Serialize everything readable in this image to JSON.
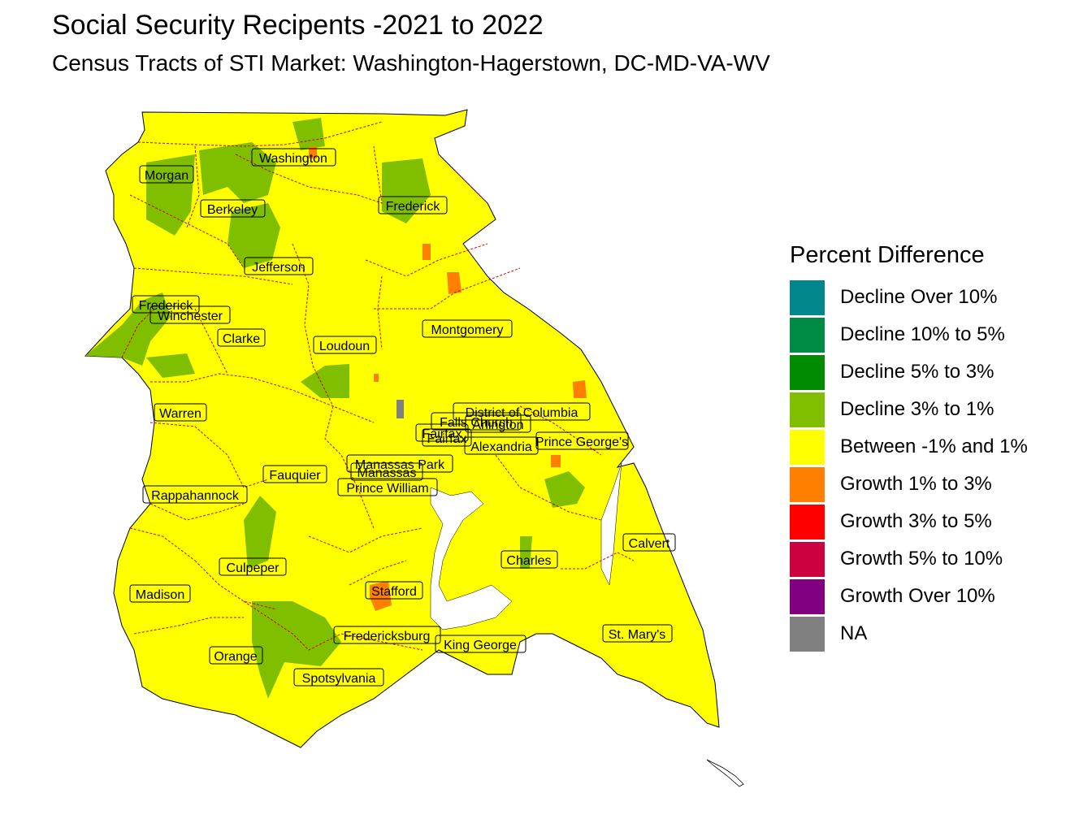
{
  "title": "Social Security Recipents -2021 to 2022",
  "subtitle": "Census Tracts of STI Market: Washington-Hagerstown, DC-MD-VA-WV",
  "legend": {
    "title": "Percent Difference",
    "items": [
      {
        "label": "Decline Over 10%",
        "color": "#00868B"
      },
      {
        "label": "Decline 10% to 5%",
        "color": "#008B45"
      },
      {
        "label": "Decline 5% to 3%",
        "color": "#008B00"
      },
      {
        "label": "Decline 3% to 1%",
        "color": "#7FBF00"
      },
      {
        "label": "Between -1% and 1%",
        "color": "#FFFF00"
      },
      {
        "label": "Growth 1% to 3%",
        "color": "#FF7F00"
      },
      {
        "label": "Growth 3% to 5%",
        "color": "#FF0000"
      },
      {
        "label": "Growth 5% to 10%",
        "color": "#CD0040"
      },
      {
        "label": "Growth Over 10%",
        "color": "#800080"
      },
      {
        "label": "NA",
        "color": "#808080"
      }
    ]
  },
  "counties": {
    "washington": "Washington",
    "morgan": "Morgan",
    "berkeley": "Berkeley",
    "frederick_md": "Frederick",
    "jefferson": "Jefferson",
    "frederick_va": "Frederick",
    "winchester": "Winchester",
    "clarke": "Clarke",
    "loudoun": "Loudoun",
    "montgomery": "Montgomery",
    "warren": "Warren",
    "dc": "District of Columbia",
    "falls_church": "Falls Church",
    "arlington": "Arlington",
    "fairfax_city": "Fairfax",
    "fairfax": "Fairfax",
    "alexandria": "Alexandria",
    "prince_georges": "Prince George's",
    "manassas_park": "Manassas Park",
    "manassas": "Manassas",
    "prince_william": "Prince William",
    "fauquier": "Fauquier",
    "rappahannock": "Rappahannock",
    "calvert": "Calvert",
    "charles": "Charles",
    "culpeper": "Culpeper",
    "stafford": "Stafford",
    "madison": "Madison",
    "fredericksburg": "Fredericksburg",
    "king_george": "King George",
    "st_marys": "St. Mary's",
    "orange": "Orange",
    "spotsylvania": "Spotsylvania"
  }
}
